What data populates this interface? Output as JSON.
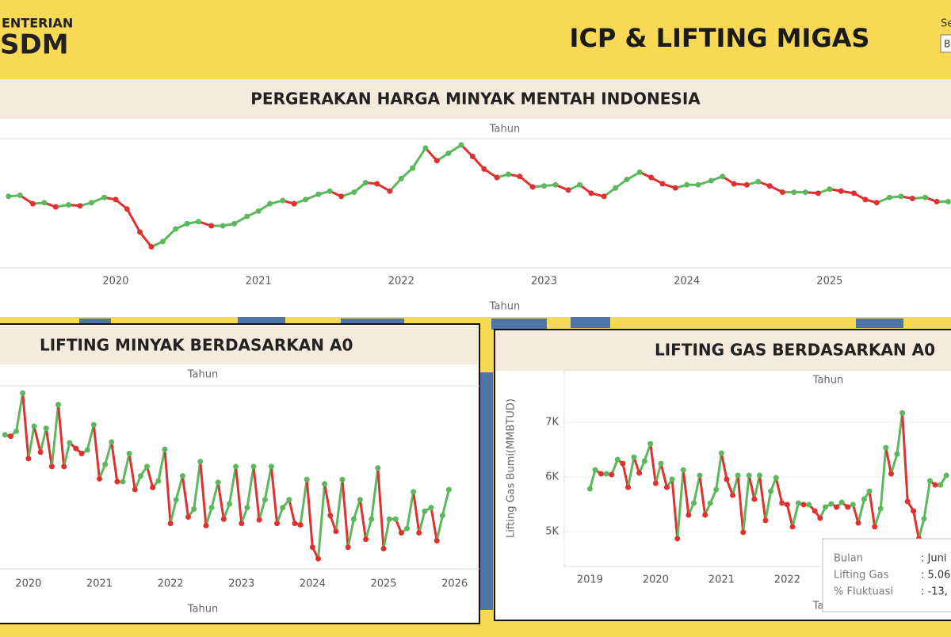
{
  "header": {
    "logo_top": "ENTERIAN",
    "logo_main": "SDM",
    "title": "ICP & LIFTING MIGAS",
    "filter_label": "Se",
    "filter_value": "B"
  },
  "chart_data": [
    {
      "type": "line",
      "title": "PERGERAKAN HARGA MINYAK MENTAH INDONESIA",
      "xlabel": "Tahun",
      "colors": {
        "up": "#5cb85c",
        "down": "#e03030"
      },
      "xlim": [
        2019.19,
        2025.85
      ],
      "xticks": [
        2020,
        2021,
        2022,
        2023,
        2024,
        2025
      ],
      "ylim": [
        0,
        123
      ],
      "x": [
        2019.25,
        2019.33,
        2019.42,
        2019.5,
        2019.58,
        2019.67,
        2019.75,
        2019.83,
        2019.92,
        2020,
        2020.08,
        2020.17,
        2020.25,
        2020.33,
        2020.42,
        2020.5,
        2020.58,
        2020.67,
        2020.75,
        2020.83,
        2020.92,
        2021,
        2021.08,
        2021.17,
        2021.25,
        2021.33,
        2021.42,
        2021.5,
        2021.58,
        2021.67,
        2021.75,
        2021.83,
        2021.92,
        2022,
        2022.08,
        2022.17,
        2022.25,
        2022.33,
        2022.42,
        2022.5,
        2022.58,
        2022.67,
        2022.75,
        2022.83,
        2022.92,
        2023,
        2023.08,
        2023.17,
        2023.25,
        2023.33,
        2023.42,
        2023.5,
        2023.58,
        2023.67,
        2023.75,
        2023.83,
        2023.92,
        2024,
        2024.08,
        2024.17,
        2024.25,
        2024.33,
        2024.42,
        2024.5,
        2024.58,
        2024.67,
        2024.75,
        2024.83,
        2024.92,
        2025,
        2025.08,
        2025.17,
        2025.25,
        2025.33,
        2025.42,
        2025.5,
        2025.58,
        2025.67,
        2025.75,
        2025.83
      ],
      "values": [
        68,
        69,
        61,
        62,
        58,
        60,
        59,
        62,
        67,
        65,
        56,
        34,
        20,
        25,
        37,
        42,
        44,
        40,
        40,
        42,
        49,
        54,
        61,
        64,
        61,
        65,
        70,
        73,
        68,
        72,
        81,
        80,
        73,
        85,
        95,
        114,
        102,
        109,
        117,
        106,
        94,
        86,
        89,
        87,
        77,
        78,
        79,
        74,
        79,
        71,
        68,
        76,
        84,
        91,
        86,
        80,
        76,
        79,
        79,
        83,
        87,
        80,
        79,
        82,
        78,
        72,
        72,
        72,
        71,
        75,
        73,
        71,
        65,
        62,
        67,
        68,
        66,
        67,
        63,
        63
      ]
    },
    {
      "type": "line",
      "title": "LIFTING MINYAK BERDASARKAN A0",
      "xlabel": "Tahun",
      "colors": {
        "up": "#5cb85c",
        "down": "#e03030"
      },
      "xlim": [
        2019.6,
        2026.35
      ],
      "xticks": [
        2020,
        2021,
        2022,
        2023,
        2024,
        2025,
        2026
      ],
      "ylim": [
        546,
        800
      ],
      "x": [
        2019.67,
        2019.75,
        2019.83,
        2019.92,
        2020,
        2020.08,
        2020.17,
        2020.25,
        2020.33,
        2020.42,
        2020.5,
        2020.58,
        2020.67,
        2020.75,
        2020.83,
        2020.92,
        2021,
        2021.08,
        2021.17,
        2021.25,
        2021.33,
        2021.42,
        2021.5,
        2021.58,
        2021.67,
        2021.75,
        2021.83,
        2021.92,
        2022,
        2022.08,
        2022.17,
        2022.25,
        2022.33,
        2022.42,
        2022.5,
        2022.58,
        2022.67,
        2022.75,
        2022.83,
        2022.92,
        2023,
        2023.08,
        2023.17,
        2023.25,
        2023.33,
        2023.42,
        2023.5,
        2023.58,
        2023.67,
        2023.75,
        2023.83,
        2023.92,
        2024,
        2024.08,
        2024.17,
        2024.25,
        2024.33,
        2024.42,
        2024.5,
        2024.58,
        2024.67,
        2024.75,
        2024.83,
        2024.92,
        2025,
        2025.08,
        2025.17,
        2025.25,
        2025.33,
        2025.42,
        2025.5,
        2025.58,
        2025.67,
        2025.75,
        2025.83,
        2025.92
      ],
      "values": [
        732,
        730,
        737,
        790,
        699,
        744,
        708,
        741,
        688,
        774,
        688,
        721,
        713,
        706,
        711,
        746,
        671,
        691,
        722,
        667,
        667,
        706,
        656,
        675,
        688,
        659,
        668,
        712,
        609,
        642,
        675,
        618,
        629,
        695,
        606,
        631,
        666,
        615,
        636,
        688,
        609,
        631,
        688,
        614,
        642,
        688,
        609,
        631,
        642,
        609,
        607,
        670,
        576,
        560,
        664,
        620,
        598,
        670,
        576,
        615,
        642,
        587,
        615,
        686,
        574,
        615,
        615,
        596,
        602,
        653,
        596,
        626,
        631,
        585,
        620,
        656
      ]
    },
    {
      "type": "line",
      "title": "LIFTING GAS BERDASARKAN A0",
      "xlabel": "Tahun",
      "ylabel": "Lifting Gas Bumi(MMBTUD)",
      "colors": {
        "up": "#5cb85c",
        "down": "#e03030"
      },
      "grid": true,
      "xlim": [
        2018.61,
        2024.49
      ],
      "xticks": [
        2019,
        2020,
        2021,
        2022
      ],
      "ylim": [
        4360,
        7960
      ],
      "yticks": [
        {
          "value": 5000,
          "label": "5K"
        },
        {
          "value": 6000,
          "label": "6K"
        },
        {
          "value": 7000,
          "label": "7K"
        }
      ],
      "x": [
        2019,
        2019.08,
        2019.17,
        2019.25,
        2019.33,
        2019.42,
        2019.5,
        2019.58,
        2019.67,
        2019.75,
        2019.83,
        2019.92,
        2020,
        2020.08,
        2020.17,
        2020.25,
        2020.33,
        2020.42,
        2020.5,
        2020.58,
        2020.67,
        2020.75,
        2020.83,
        2020.92,
        2021,
        2021.08,
        2021.17,
        2021.25,
        2021.33,
        2021.42,
        2021.5,
        2021.58,
        2021.67,
        2021.75,
        2021.83,
        2021.92,
        2022,
        2022.08,
        2022.17,
        2022.25,
        2022.33,
        2022.42,
        2022.5,
        2022.58,
        2022.67,
        2022.75,
        2022.83,
        2022.92,
        2023,
        2023.08,
        2023.17,
        2023.25,
        2023.33,
        2023.42,
        2023.5,
        2023.58,
        2023.67,
        2023.75,
        2023.83,
        2023.92,
        2024,
        2024.08,
        2024.17,
        2024.25,
        2024.33,
        2024.42
      ],
      "values": [
        5783,
        6130,
        6058,
        6058,
        6043,
        6319,
        6246,
        5812,
        6362,
        6072,
        6290,
        6609,
        5884,
        6246,
        5812,
        5957,
        4870,
        6130,
        5304,
        5522,
        6029,
        5304,
        5522,
        5768,
        6435,
        5957,
        5667,
        6029,
        4986,
        6029,
        5594,
        6029,
        5203,
        5739,
        5986,
        5522,
        5493,
        5087,
        5522,
        5493,
        5493,
        5377,
        5246,
        5449,
        5507,
        5449,
        5536,
        5449,
        5493,
        5159,
        5594,
        5739,
        5087,
        5420,
        6536,
        6058,
        6420,
        7174,
        5551,
        5377,
        4870,
        5232,
        5928,
        5855,
        5855,
        6029
      ]
    }
  ],
  "tooltip": {
    "rows": [
      [
        "Bulan",
        ": Juni"
      ],
      [
        "Lifting Gas",
        ": 5.06"
      ],
      [
        "% Fluktuasi",
        ": -13,"
      ]
    ]
  }
}
